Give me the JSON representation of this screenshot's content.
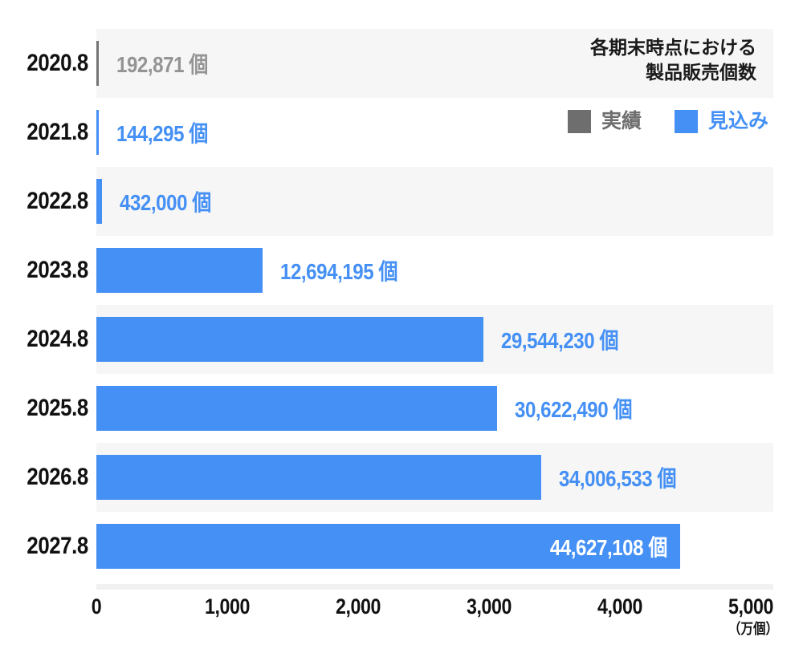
{
  "title": {
    "line1": "各期末時点における",
    "line2": "製品販売個数"
  },
  "legend": {
    "actual": {
      "label": "実績",
      "color": "#6E6E6E",
      "text_color": "#6E6E6E"
    },
    "forecast": {
      "label": "見込み",
      "color": "#4590F5",
      "text_color": "#4590F5"
    }
  },
  "colors": {
    "forecast_blue": "#4590F5",
    "actual_gray": "#747474",
    "actual_value_text": "#949494",
    "inside_bar_text": "#FFFFFF",
    "row_band": "#F6F6F6",
    "axis_text": "#111111"
  },
  "chart_data": {
    "type": "bar",
    "orientation": "horizontal",
    "title": "各期末時点における製品販売個数",
    "categories": [
      "2020.8",
      "2021.8",
      "2022.8",
      "2023.8",
      "2024.8",
      "2025.8",
      "2026.8",
      "2027.8"
    ],
    "series_by_row": [
      "実績",
      "見込み",
      "見込み",
      "見込み",
      "見込み",
      "見込み",
      "見込み",
      "見込み"
    ],
    "values": [
      192871,
      144295,
      432000,
      12694195,
      29544230,
      30622490,
      34006533,
      44627108
    ],
    "value_labels": [
      "192,871 個",
      "144,295 個",
      "432,000 個",
      "12,694,195 個",
      "29,544,230 個",
      "30,622,490 個",
      "34,006,533 個",
      "44,627,108 個"
    ],
    "value_unit": "個",
    "x_axis_unit": "万個",
    "x_unit_note": "（万個）",
    "x_ticks": [
      0,
      1000,
      2000,
      3000,
      4000,
      5000
    ],
    "x_tick_labels": [
      "0",
      "1,000",
      "2,000",
      "3,000",
      "4,000",
      "5,000"
    ],
    "xlim": [
      0,
      5000
    ],
    "grid": false,
    "row_bands_alternate": true,
    "legend_position": "top-right",
    "legend_entries": [
      "実績",
      "見込み"
    ]
  }
}
